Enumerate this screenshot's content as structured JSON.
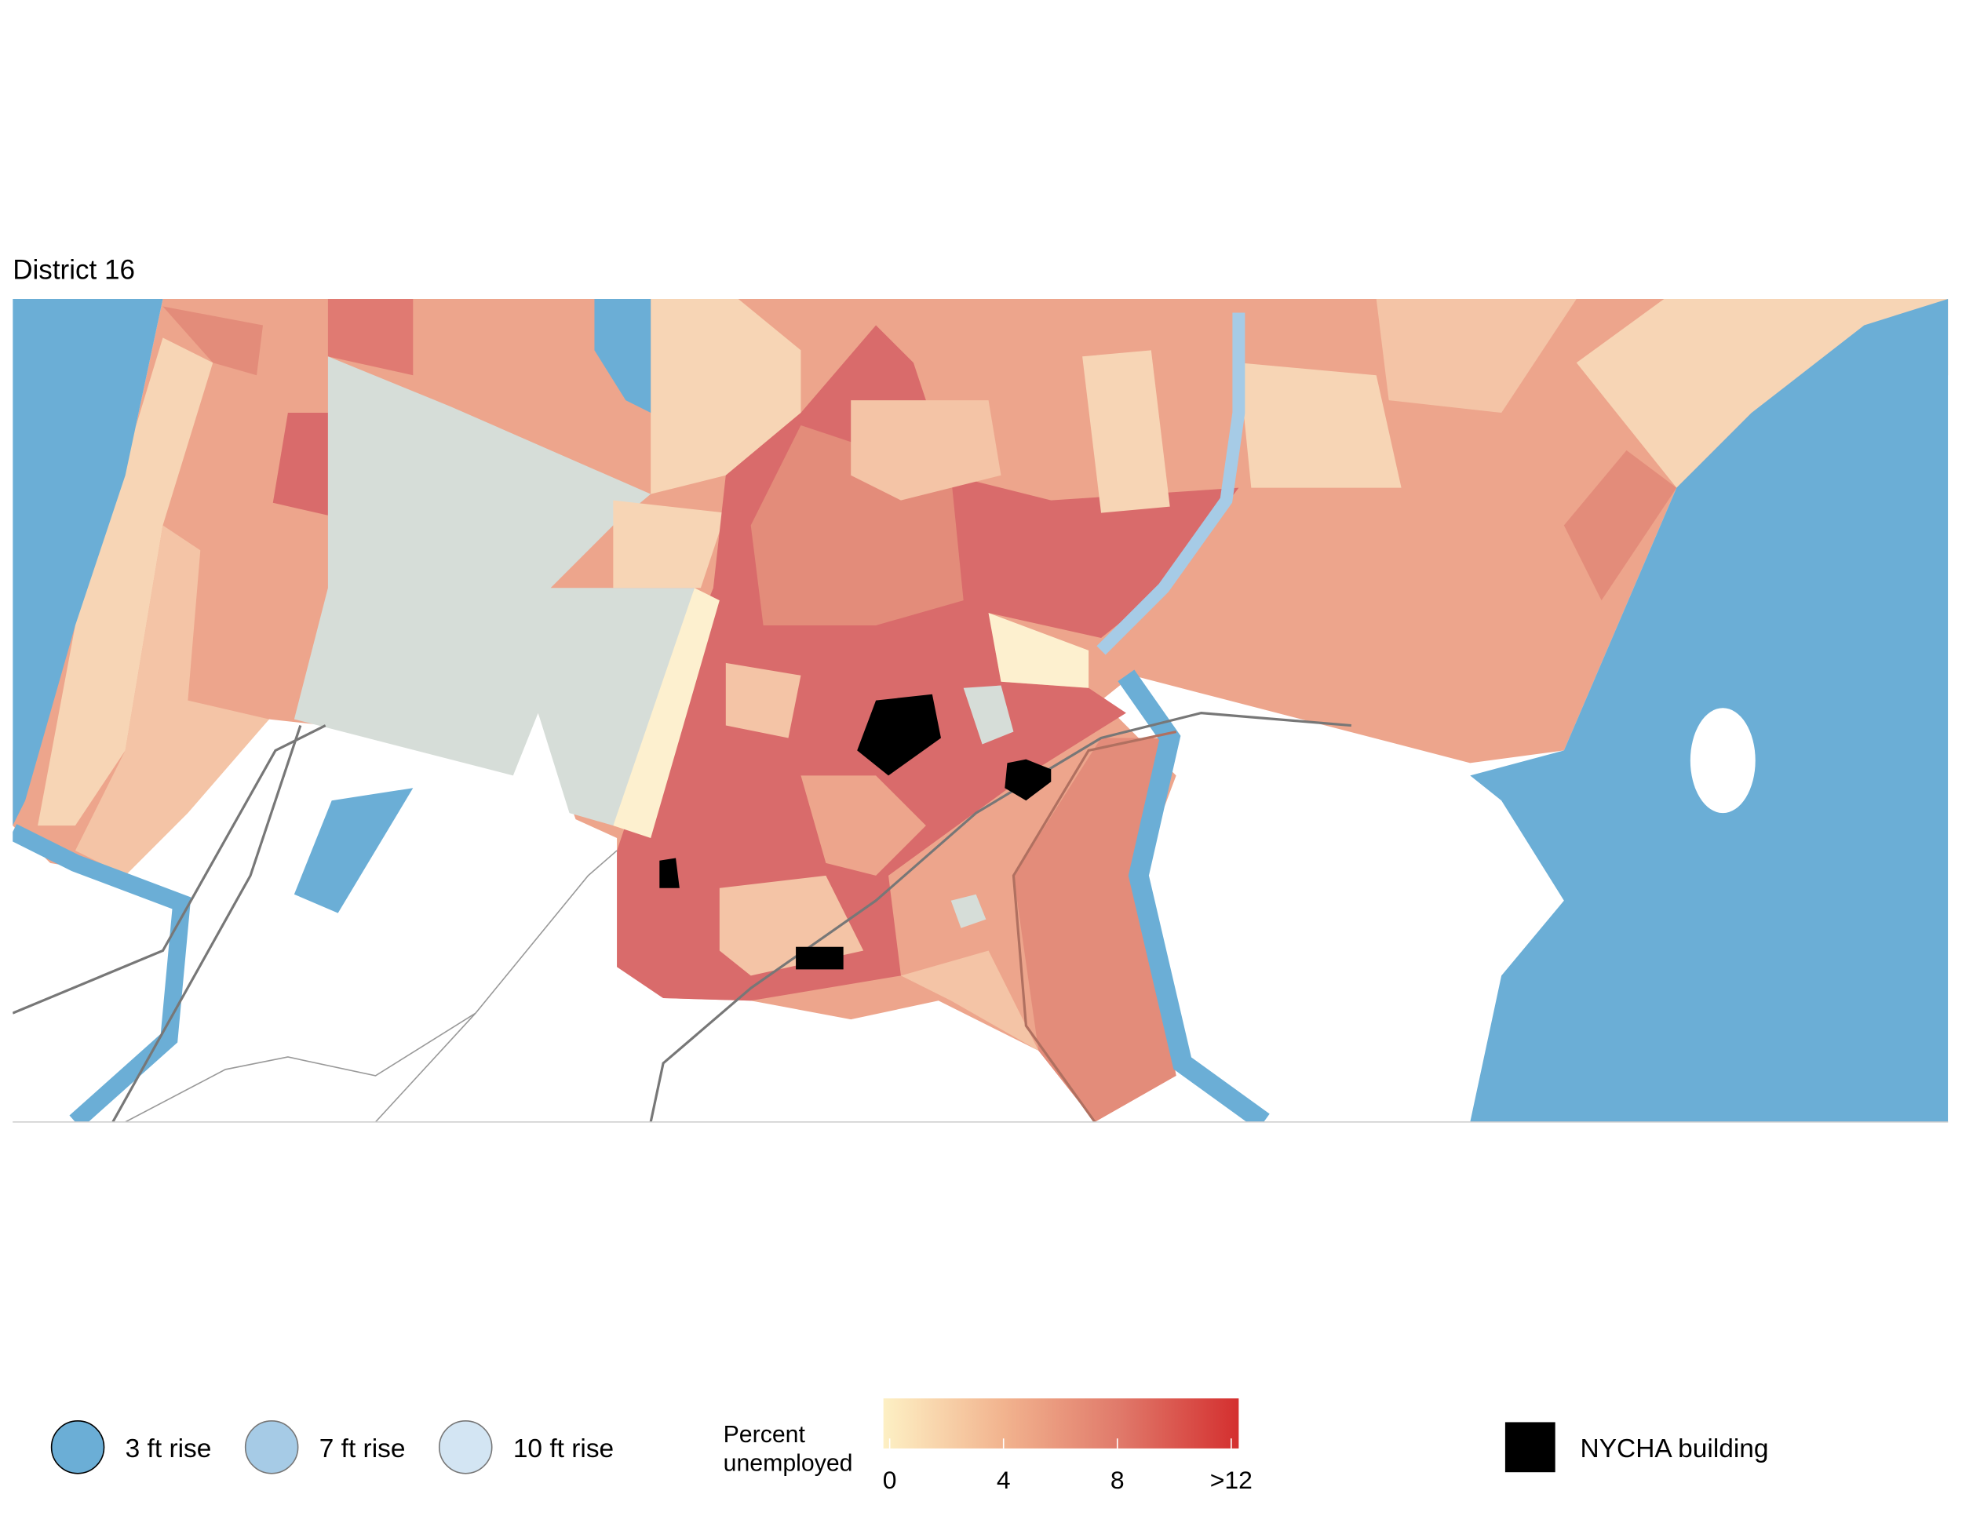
{
  "title": "District 16",
  "legend": {
    "flood": [
      {
        "label": "3 ft rise",
        "color": "#6baed6"
      },
      {
        "label": "7 ft rise",
        "color": "#a6cbe6"
      },
      {
        "label": "10 ft rise",
        "color": "#d3e5f3"
      }
    ],
    "colorbar": {
      "label": [
        "Percent",
        "unemployed"
      ],
      "colors": [
        "#fdf0c4",
        "#f2b48f",
        "#e0796a",
        "#d42f2f"
      ],
      "range": [
        0,
        12
      ],
      "ticks": [
        0,
        4,
        8,
        {
          "value": 12,
          "label": ">12"
        }
      ]
    },
    "nycha": {
      "label": "NYCHA building",
      "color": "#000000"
    }
  }
}
